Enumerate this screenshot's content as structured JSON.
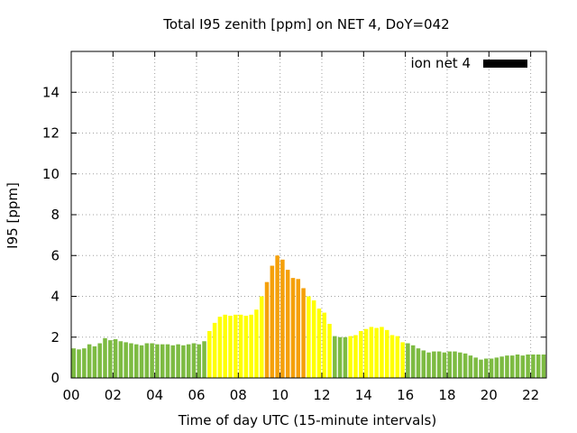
{
  "chart_data": {
    "type": "bar",
    "title": "Total I95 zenith [ppm] on NET 4, DoY=042",
    "xlabel": "Time of day UTC (15-minute intervals)",
    "ylabel": "I95 [ppm]",
    "xlim": [
      0,
      22.75
    ],
    "ylim": [
      0,
      16
    ],
    "x_tick_values": [
      0,
      2,
      4,
      6,
      8,
      10,
      12,
      14,
      16,
      18,
      20,
      22
    ],
    "x_tick_labels": [
      "00",
      "02",
      "04",
      "06",
      "08",
      "10",
      "12",
      "14",
      "16",
      "18",
      "20",
      "22"
    ],
    "y_tick_values": [
      0,
      2,
      4,
      6,
      8,
      10,
      12,
      14
    ],
    "y_tick_labels": [
      "0",
      "2",
      "4",
      "6",
      "8",
      "10",
      "12",
      "14"
    ],
    "grid": true,
    "legend": {
      "label": "ion net 4",
      "color": "#000000",
      "position": "top-right"
    },
    "interval_hours": 0.25,
    "colors": {
      "green": "#7dbb42",
      "yellow": "#ffff00",
      "orange": "#f5a00a"
    },
    "x": [
      0.0,
      0.25,
      0.5,
      0.75,
      1.0,
      1.25,
      1.5,
      1.75,
      2.0,
      2.25,
      2.5,
      2.75,
      3.0,
      3.25,
      3.5,
      3.75,
      4.0,
      4.25,
      4.5,
      4.75,
      5.0,
      5.25,
      5.5,
      5.75,
      6.0,
      6.25,
      6.5,
      6.75,
      7.0,
      7.25,
      7.5,
      7.75,
      8.0,
      8.25,
      8.5,
      8.75,
      9.0,
      9.25,
      9.5,
      9.75,
      10.0,
      10.25,
      10.5,
      10.75,
      11.0,
      11.25,
      11.5,
      11.75,
      12.0,
      12.25,
      12.5,
      12.75,
      13.0,
      13.25,
      13.5,
      13.75,
      14.0,
      14.25,
      14.5,
      14.75,
      15.0,
      15.25,
      15.5,
      15.75,
      16.0,
      16.25,
      16.5,
      16.75,
      17.0,
      17.25,
      17.5,
      17.75,
      18.0,
      18.25,
      18.5,
      18.75,
      19.0,
      19.25,
      19.5,
      19.75,
      20.0,
      20.25,
      20.5,
      20.75,
      21.0,
      21.25,
      21.5,
      21.75,
      22.0,
      22.25,
      22.5
    ],
    "values": [
      1.45,
      1.4,
      1.45,
      1.65,
      1.55,
      1.7,
      1.95,
      1.85,
      1.9,
      1.8,
      1.75,
      1.7,
      1.65,
      1.6,
      1.7,
      1.7,
      1.65,
      1.65,
      1.65,
      1.6,
      1.65,
      1.6,
      1.65,
      1.7,
      1.65,
      1.8,
      2.3,
      2.7,
      3.0,
      3.1,
      3.05,
      3.1,
      3.1,
      3.05,
      3.1,
      3.35,
      4.0,
      4.7,
      5.5,
      6.0,
      5.8,
      5.3,
      4.9,
      4.85,
      4.4,
      4.0,
      3.8,
      3.4,
      3.2,
      2.65,
      2.05,
      2.0,
      2.0,
      2.05,
      2.1,
      2.3,
      2.4,
      2.5,
      2.45,
      2.5,
      2.35,
      2.1,
      2.05,
      1.75,
      1.7,
      1.6,
      1.45,
      1.35,
      1.25,
      1.3,
      1.3,
      1.25,
      1.3,
      1.3,
      1.25,
      1.2,
      1.1,
      1.0,
      0.9,
      0.95,
      0.95,
      1.0,
      1.05,
      1.1,
      1.1,
      1.15,
      1.1,
      1.15,
      1.15,
      1.15,
      1.15
    ],
    "bar_colors": [
      "green",
      "green",
      "green",
      "green",
      "green",
      "green",
      "green",
      "green",
      "green",
      "green",
      "green",
      "green",
      "green",
      "green",
      "green",
      "green",
      "green",
      "green",
      "green",
      "green",
      "green",
      "green",
      "green",
      "green",
      "green",
      "green",
      "yellow",
      "yellow",
      "yellow",
      "yellow",
      "yellow",
      "yellow",
      "yellow",
      "yellow",
      "yellow",
      "yellow",
      "yellow",
      "orange",
      "orange",
      "orange",
      "orange",
      "orange",
      "orange",
      "orange",
      "orange",
      "yellow",
      "yellow",
      "yellow",
      "yellow",
      "yellow",
      "green",
      "green",
      "green",
      "yellow",
      "yellow",
      "yellow",
      "yellow",
      "yellow",
      "yellow",
      "yellow",
      "yellow",
      "yellow",
      "yellow",
      "yellow",
      "green",
      "green",
      "green",
      "green",
      "green",
      "green",
      "green",
      "green",
      "green",
      "green",
      "green",
      "green",
      "green",
      "green",
      "green",
      "green",
      "green",
      "green",
      "green",
      "green",
      "green",
      "green",
      "green",
      "green",
      "green",
      "green",
      "green"
    ]
  }
}
